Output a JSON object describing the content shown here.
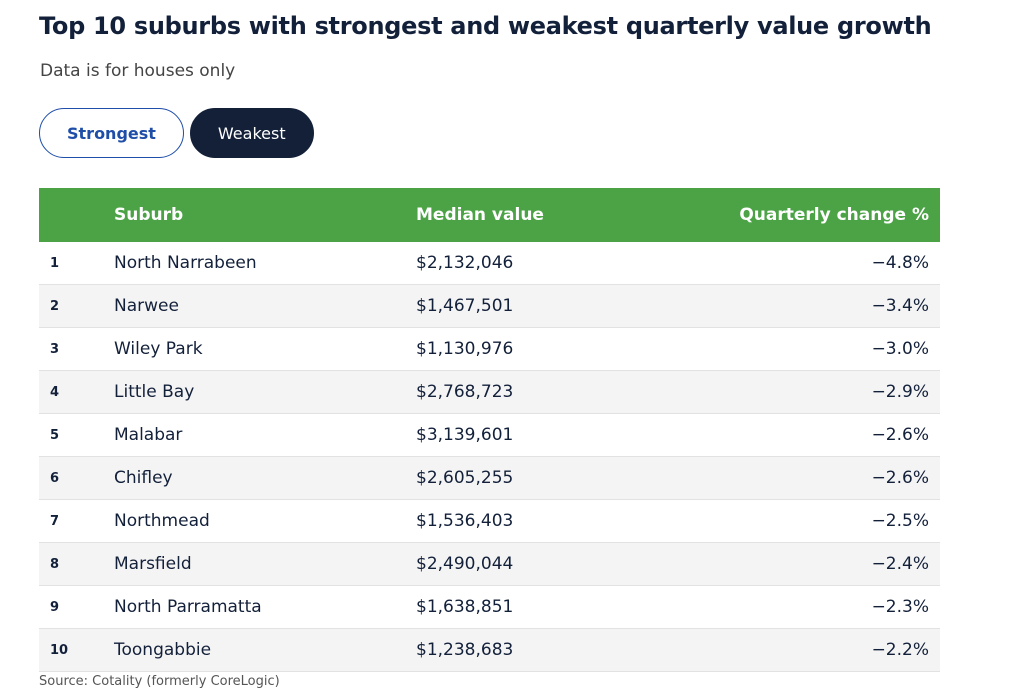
{
  "header": {
    "title": "Top 10 suburbs with strongest and weakest quarterly value growth",
    "subtitle": "Data is for houses only"
  },
  "tabs": [
    {
      "label": "Strongest",
      "active": false
    },
    {
      "label": "Weakest",
      "active": true
    }
  ],
  "table": {
    "columns": [
      "Suburb",
      "Median value",
      "Quarterly change %"
    ],
    "rows": [
      [
        "1",
        "North Narrabeen",
        "$2,132,046",
        "−4.8%"
      ],
      [
        "2",
        "Narwee",
        "$1,467,501",
        "−3.4%"
      ],
      [
        "3",
        "Wiley Park",
        "$1,130,976",
        "−3.0%"
      ],
      [
        "4",
        "Little Bay",
        "$2,768,723",
        "−2.9%"
      ],
      [
        "5",
        "Malabar",
        "$3,139,601",
        "−2.6%"
      ],
      [
        "6",
        "Chifley",
        "$2,605,255",
        "−2.6%"
      ],
      [
        "7",
        "Northmead",
        "$1,536,403",
        "−2.5%"
      ],
      [
        "8",
        "Marsfield",
        "$2,490,044",
        "−2.4%"
      ],
      [
        "9",
        "North Parramatta",
        "$1,638,851",
        "−2.3%"
      ],
      [
        "10",
        "Toongabbie",
        "$1,238,683",
        "−2.2%"
      ]
    ]
  },
  "footer": {
    "source": "Source: Cotality (formerly CoreLogic)"
  }
}
